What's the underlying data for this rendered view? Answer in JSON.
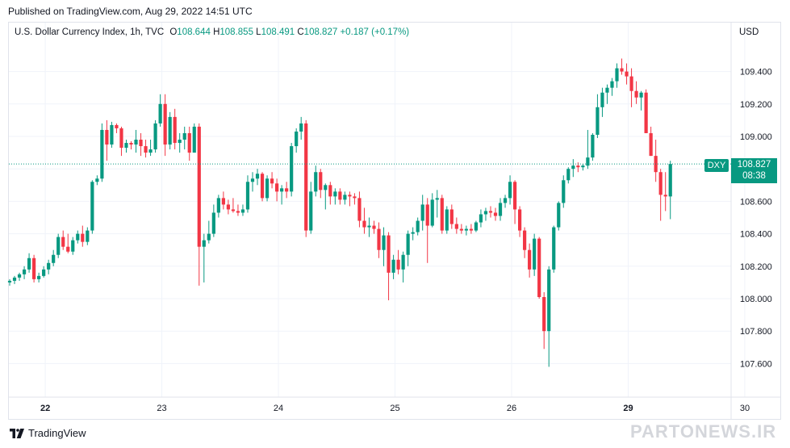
{
  "header": {
    "published": "Published on TradingView.com, Aug 29, 2022 14:51 UTC"
  },
  "legend": {
    "symbol": "U.S. Dollar Currency Index, 1h, TVC",
    "open_label": "O",
    "open": "108.644",
    "high_label": "H",
    "high": "108.855",
    "low_label": "L",
    "low": "108.491",
    "close_label": "C",
    "close": "108.827",
    "change": "+0.187 (+0.17%)"
  },
  "axis": {
    "currency": "USD"
  },
  "last_price": {
    "ticker": "DXY",
    "price": "108.827",
    "countdown": "08:38"
  },
  "footer": {
    "brand": "TradingView"
  },
  "watermark": {
    "text": "PARTONEWS.IR"
  },
  "colors": {
    "up": "#089981",
    "down": "#f23645",
    "grid": "#f0f3fa",
    "last_line": "#089981"
  },
  "chart_data": {
    "type": "candlestick",
    "ylim": [
      107.5,
      109.6
    ],
    "y_ticks": [
      "107.600",
      "107.800",
      "108.000",
      "108.200",
      "108.400",
      "108.600",
      "108.800",
      "109.000",
      "109.200",
      "109.400"
    ],
    "x_ticks": [
      {
        "label": "22",
        "bold": true,
        "index": 4
      },
      {
        "label": "23",
        "bold": false,
        "index": 28
      },
      {
        "label": "24",
        "bold": false,
        "index": 52
      },
      {
        "label": "25",
        "bold": false,
        "index": 76
      },
      {
        "label": "26",
        "bold": false,
        "index": 100
      },
      {
        "label": "29",
        "bold": true,
        "index": 124
      },
      {
        "label": "30",
        "bold": false,
        "index": 148
      }
    ],
    "candles": [
      [
        108.1,
        108.12,
        108.08,
        108.11
      ],
      [
        108.11,
        108.14,
        108.09,
        108.13
      ],
      [
        108.13,
        108.16,
        108.11,
        108.15
      ],
      [
        108.15,
        108.2,
        108.12,
        108.18
      ],
      [
        108.18,
        108.28,
        108.16,
        108.25
      ],
      [
        108.25,
        108.27,
        108.1,
        108.12
      ],
      [
        108.12,
        108.16,
        108.1,
        108.14
      ],
      [
        108.14,
        108.2,
        108.13,
        108.18
      ],
      [
        108.18,
        108.24,
        108.15,
        108.22
      ],
      [
        108.22,
        108.3,
        108.2,
        108.27
      ],
      [
        108.27,
        108.4,
        108.25,
        108.38
      ],
      [
        108.38,
        108.42,
        108.3,
        108.32
      ],
      [
        108.32,
        108.4,
        108.28,
        108.29
      ],
      [
        108.29,
        108.38,
        108.27,
        108.36
      ],
      [
        108.36,
        108.42,
        108.34,
        108.4
      ],
      [
        108.4,
        108.45,
        108.32,
        108.35
      ],
      [
        108.35,
        108.44,
        108.33,
        108.42
      ],
      [
        108.42,
        108.73,
        108.4,
        108.72
      ],
      [
        108.72,
        108.76,
        108.7,
        108.74
      ],
      [
        108.74,
        109.08,
        108.72,
        109.04
      ],
      [
        109.04,
        109.1,
        108.85,
        108.95
      ],
      [
        108.95,
        109.09,
        108.93,
        109.07
      ],
      [
        109.07,
        109.08,
        109.02,
        109.05
      ],
      [
        109.05,
        109.06,
        108.88,
        108.93
      ],
      [
        108.93,
        108.98,
        108.9,
        108.96
      ],
      [
        108.96,
        108.97,
        108.92,
        108.95
      ],
      [
        108.95,
        109.04,
        108.9,
        108.98
      ],
      [
        108.98,
        109.02,
        108.88,
        108.94
      ],
      [
        108.94,
        108.98,
        108.87,
        108.9
      ],
      [
        108.9,
        108.98,
        108.88,
        108.92
      ],
      [
        108.92,
        109.1,
        108.9,
        109.08
      ],
      [
        109.08,
        109.26,
        109.06,
        109.2
      ],
      [
        109.2,
        109.26,
        108.88,
        108.95
      ],
      [
        108.95,
        109.15,
        108.92,
        109.12
      ],
      [
        109.12,
        109.17,
        108.92,
        108.96
      ],
      [
        108.96,
        109.02,
        108.9,
        108.98
      ],
      [
        108.98,
        109.06,
        108.92,
        109.02
      ],
      [
        109.02,
        109.06,
        108.85,
        108.9
      ],
      [
        108.9,
        109.08,
        108.9,
        109.06
      ],
      [
        109.06,
        109.08,
        108.08,
        108.32
      ],
      [
        108.32,
        108.4,
        108.1,
        108.36
      ],
      [
        108.36,
        108.48,
        108.34,
        108.4
      ],
      [
        108.4,
        108.58,
        108.38,
        108.53
      ],
      [
        108.53,
        108.64,
        108.5,
        108.62
      ],
      [
        108.62,
        108.66,
        108.55,
        108.58
      ],
      [
        108.58,
        108.61,
        108.52,
        108.55
      ],
      [
        108.55,
        108.62,
        108.53,
        108.54
      ],
      [
        108.54,
        108.58,
        108.51,
        108.53
      ],
      [
        108.53,
        108.58,
        108.51,
        108.55
      ],
      [
        108.55,
        108.76,
        108.53,
        108.72
      ],
      [
        108.72,
        108.78,
        108.66,
        108.74
      ],
      [
        108.74,
        108.8,
        108.7,
        108.77
      ],
      [
        108.77,
        108.78,
        108.6,
        108.62
      ],
      [
        108.62,
        108.76,
        108.6,
        108.74
      ],
      [
        108.74,
        108.78,
        108.68,
        108.71
      ],
      [
        108.71,
        108.74,
        108.6,
        108.66
      ],
      [
        108.66,
        108.7,
        108.58,
        108.68
      ],
      [
        108.68,
        108.72,
        108.62,
        108.66
      ],
      [
        108.66,
        108.96,
        108.63,
        108.94
      ],
      [
        108.94,
        109.05,
        108.9,
        109.03
      ],
      [
        109.03,
        109.12,
        108.98,
        109.08
      ],
      [
        109.08,
        109.1,
        108.38,
        108.42
      ],
      [
        108.42,
        108.72,
        108.4,
        108.66
      ],
      [
        108.66,
        108.82,
        108.63,
        108.78
      ],
      [
        108.78,
        108.8,
        108.62,
        108.67
      ],
      [
        108.67,
        108.71,
        108.55,
        108.7
      ],
      [
        108.7,
        108.72,
        108.58,
        108.63
      ],
      [
        108.63,
        108.68,
        108.58,
        108.66
      ],
      [
        108.66,
        108.68,
        108.58,
        108.61
      ],
      [
        108.61,
        108.66,
        108.58,
        108.64
      ],
      [
        108.64,
        108.66,
        108.57,
        108.63
      ],
      [
        108.63,
        108.65,
        108.58,
        108.62
      ],
      [
        108.62,
        108.66,
        108.44,
        108.48
      ],
      [
        108.48,
        108.56,
        108.4,
        108.44
      ],
      [
        108.44,
        108.5,
        108.38,
        108.45
      ],
      [
        108.45,
        108.48,
        108.4,
        108.43
      ],
      [
        108.43,
        108.47,
        108.25,
        108.3
      ],
      [
        108.3,
        108.44,
        108.2,
        108.39
      ],
      [
        108.39,
        108.41,
        107.99,
        108.16
      ],
      [
        108.16,
        108.27,
        108.12,
        108.24
      ],
      [
        108.24,
        108.3,
        108.15,
        108.18
      ],
      [
        108.18,
        108.29,
        108.1,
        108.27
      ],
      [
        108.27,
        108.42,
        108.2,
        108.4
      ],
      [
        108.4,
        108.44,
        108.36,
        108.41
      ],
      [
        108.41,
        108.5,
        108.39,
        108.48
      ],
      [
        108.48,
        108.64,
        108.42,
        108.58
      ],
      [
        108.58,
        108.62,
        108.22,
        108.45
      ],
      [
        108.45,
        108.65,
        108.44,
        108.61
      ],
      [
        108.61,
        108.67,
        108.5,
        108.62
      ],
      [
        108.62,
        108.64,
        108.4,
        108.42
      ],
      [
        108.42,
        108.57,
        108.4,
        108.55
      ],
      [
        108.55,
        108.58,
        108.43,
        108.46
      ],
      [
        108.46,
        108.5,
        108.4,
        108.43
      ],
      [
        108.43,
        108.46,
        108.4,
        108.42
      ],
      [
        108.42,
        108.45,
        108.39,
        108.43
      ],
      [
        108.43,
        108.46,
        108.4,
        108.42
      ],
      [
        108.42,
        108.48,
        108.41,
        108.47
      ],
      [
        108.47,
        108.55,
        108.44,
        108.52
      ],
      [
        108.52,
        108.56,
        108.48,
        108.54
      ],
      [
        108.54,
        108.57,
        108.5,
        108.53
      ],
      [
        108.53,
        108.56,
        108.48,
        108.51
      ],
      [
        108.51,
        108.62,
        108.48,
        108.59
      ],
      [
        108.59,
        108.64,
        108.56,
        108.62
      ],
      [
        108.62,
        108.76,
        108.58,
        108.72
      ],
      [
        108.72,
        108.73,
        108.46,
        108.55
      ],
      [
        108.55,
        108.57,
        108.38,
        108.42
      ],
      [
        108.42,
        108.44,
        108.25,
        108.3
      ],
      [
        108.3,
        108.34,
        108.13,
        108.18
      ],
      [
        108.18,
        108.4,
        108.14,
        108.37
      ],
      [
        108.37,
        108.38,
        108.0,
        108.01
      ],
      [
        108.01,
        108.04,
        107.69,
        107.8
      ],
      [
        107.8,
        108.2,
        107.58,
        108.18
      ],
      [
        108.18,
        108.45,
        108.16,
        108.44
      ],
      [
        108.44,
        108.6,
        108.42,
        108.59
      ],
      [
        108.59,
        108.76,
        108.56,
        108.73
      ],
      [
        108.73,
        108.81,
        108.71,
        108.8
      ],
      [
        108.8,
        108.86,
        108.75,
        108.82
      ],
      [
        108.82,
        108.84,
        108.78,
        108.81
      ],
      [
        108.81,
        108.83,
        108.79,
        108.82
      ],
      [
        108.82,
        109.04,
        108.8,
        108.87
      ],
      [
        108.87,
        109.02,
        108.85,
        109.01
      ],
      [
        109.01,
        109.26,
        108.99,
        109.18
      ],
      [
        109.18,
        109.3,
        109.12,
        109.27
      ],
      [
        109.27,
        109.32,
        109.2,
        109.3
      ],
      [
        109.3,
        109.36,
        109.25,
        109.34
      ],
      [
        109.34,
        109.45,
        109.3,
        109.42
      ],
      [
        109.42,
        109.48,
        109.38,
        109.4
      ],
      [
        109.4,
        109.45,
        109.32,
        109.37
      ],
      [
        109.37,
        109.42,
        109.18,
        109.28
      ],
      [
        109.28,
        109.34,
        109.2,
        109.24
      ],
      [
        109.24,
        109.28,
        109.16,
        109.27
      ],
      [
        109.27,
        109.29,
        109.02,
        109.02
      ],
      [
        109.02,
        109.06,
        108.88,
        108.88
      ],
      [
        108.88,
        108.98,
        108.72,
        108.78
      ],
      [
        108.78,
        108.8,
        108.48,
        108.64
      ],
      [
        108.64,
        108.78,
        108.54,
        108.63
      ],
      [
        108.63,
        108.85,
        108.49,
        108.83
      ]
    ]
  }
}
